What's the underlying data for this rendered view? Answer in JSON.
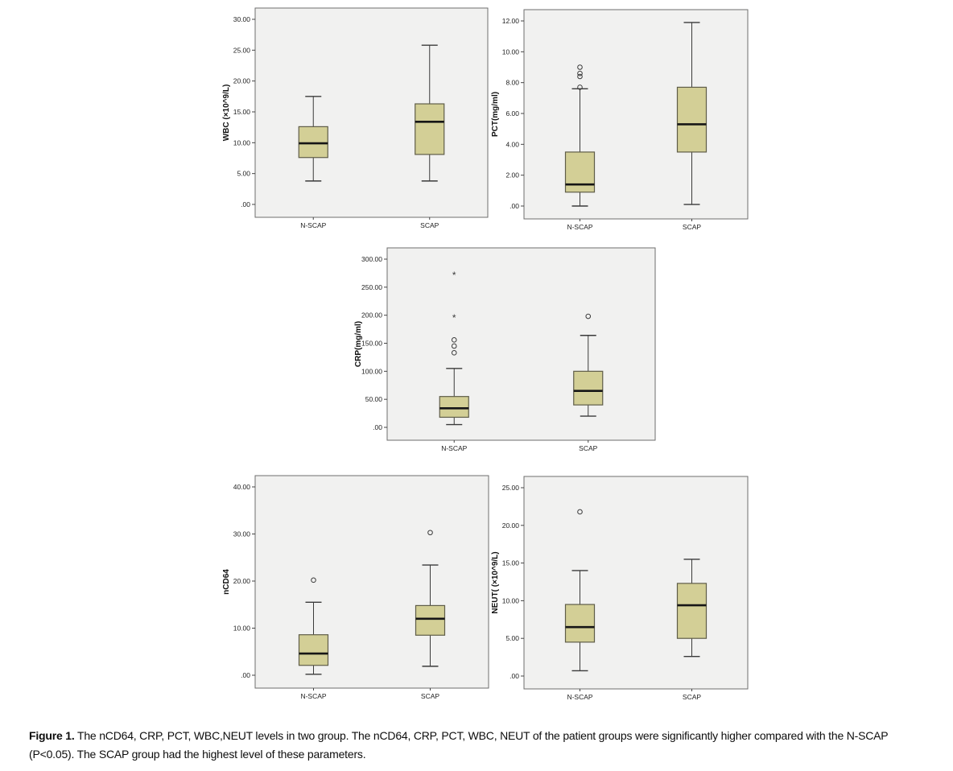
{
  "figure": {
    "caption_label": "Figure 1.",
    "caption_text": "The nCD64, CRP, PCT, WBC,NEUT levels in two group. The nCD64, CRP, PCT, WBC, NEUT of the patient groups were significantly higher compared with the N-SCAP (P<0.05). The SCAP group had the highest level of these parameters."
  },
  "style": {
    "box_fill": "#d3cf96",
    "box_border": "#5f5d48",
    "median_color": "#161616",
    "panel_bg": "#f1f1f0",
    "panel_border": "#6e6e6e",
    "whisker_color": "#3a3a3a",
    "outlier_color": "#3a3a3a",
    "tick_color": "#444444",
    "text_color": "#1d1d1d"
  },
  "chart_data": [
    {
      "type": "box",
      "id": "wbc",
      "title": "",
      "xlabel": "",
      "ylabel": "WBC (×10^9/L)",
      "ylim": [
        0,
        30
      ],
      "y_ticks": [
        0,
        5,
        10,
        15,
        20,
        25,
        30
      ],
      "y_tick_labels": [
        ".00",
        "5.00",
        "10.00",
        "15.00",
        "20.00",
        "25.00",
        "30.00"
      ],
      "categories": [
        "N-SCAP",
        "SCAP"
      ],
      "boxes": [
        {
          "category": "N-SCAP",
          "low": 3.8,
          "q1": 7.6,
          "median": 9.9,
          "q3": 12.6,
          "high": 17.5,
          "outliers": [],
          "extremes": []
        },
        {
          "category": "SCAP",
          "low": 3.8,
          "q1": 8.1,
          "median": 13.4,
          "q3": 16.3,
          "high": 25.8,
          "outliers": [],
          "extremes": []
        }
      ]
    },
    {
      "type": "box",
      "id": "pct",
      "title": "",
      "xlabel": "",
      "ylabel": "PCT(mg/ml)",
      "ylim": [
        0,
        12
      ],
      "y_ticks": [
        0,
        2,
        4,
        6,
        8,
        10,
        12
      ],
      "y_tick_labels": [
        ".00",
        "2.00",
        "4.00",
        "6.00",
        "8.00",
        "10.00",
        "12.00"
      ],
      "categories": [
        "N-SCAP",
        "SCAP"
      ],
      "boxes": [
        {
          "category": "N-SCAP",
          "low": 0.0,
          "q1": 0.9,
          "median": 1.4,
          "q3": 3.5,
          "high": 7.6,
          "outliers": [
            7.7,
            8.4,
            8.6,
            9.0
          ],
          "extremes": []
        },
        {
          "category": "SCAP",
          "low": 0.1,
          "q1": 3.5,
          "median": 5.3,
          "q3": 7.7,
          "high": 11.9,
          "outliers": [],
          "extremes": []
        }
      ]
    },
    {
      "type": "box",
      "id": "crp",
      "title": "",
      "xlabel": "",
      "ylabel": "CRP(mg/ml)",
      "ylim": [
        0,
        300
      ],
      "y_ticks": [
        0,
        50,
        100,
        150,
        200,
        250,
        300
      ],
      "y_tick_labels": [
        ".00",
        "50.00",
        "100.00",
        "150.00",
        "200.00",
        "250.00",
        "300.00"
      ],
      "categories": [
        "N-SCAP",
        "SCAP"
      ],
      "boxes": [
        {
          "category": "N-SCAP",
          "low": 5,
          "q1": 18,
          "median": 34,
          "q3": 55,
          "high": 105,
          "outliers": [
            133,
            145,
            156
          ],
          "extremes": [
            196,
            272
          ]
        },
        {
          "category": "SCAP",
          "low": 20,
          "q1": 40,
          "median": 65,
          "q3": 100,
          "high": 164,
          "outliers": [
            198
          ],
          "extremes": []
        }
      ]
    },
    {
      "type": "box",
      "id": "ncd64",
      "title": "",
      "xlabel": "",
      "ylabel": "nCD64",
      "ylim": [
        0,
        40
      ],
      "y_ticks": [
        0,
        10,
        20,
        30,
        40
      ],
      "y_tick_labels": [
        ".00",
        "10.00",
        "20.00",
        "30.00",
        "40.00"
      ],
      "categories": [
        "N-SCAP",
        "SCAP"
      ],
      "boxes": [
        {
          "category": "N-SCAP",
          "low": 0.2,
          "q1": 2.1,
          "median": 4.6,
          "q3": 8.6,
          "high": 15.5,
          "outliers": [
            20.2
          ],
          "extremes": []
        },
        {
          "category": "SCAP",
          "low": 1.9,
          "q1": 8.5,
          "median": 12.0,
          "q3": 14.8,
          "high": 23.4,
          "outliers": [
            30.3
          ],
          "extremes": []
        }
      ]
    },
    {
      "type": "box",
      "id": "neut",
      "title": "",
      "xlabel": "",
      "ylabel": "NEUT( (×10^9/L)",
      "ylim": [
        0,
        25
      ],
      "y_ticks": [
        0,
        5,
        10,
        15,
        20,
        25
      ],
      "y_tick_labels": [
        ".00",
        "5.00",
        "10.00",
        "15.00",
        "20.00",
        "25.00"
      ],
      "categories": [
        "N-SCAP",
        "SCAP"
      ],
      "boxes": [
        {
          "category": "N-SCAP",
          "low": 0.7,
          "q1": 4.5,
          "median": 6.5,
          "q3": 9.5,
          "high": 14.0,
          "outliers": [
            21.8
          ],
          "extremes": []
        },
        {
          "category": "SCAP",
          "low": 2.6,
          "q1": 5.0,
          "median": 9.4,
          "q3": 12.3,
          "high": 15.5,
          "outliers": [],
          "extremes": []
        }
      ]
    }
  ]
}
